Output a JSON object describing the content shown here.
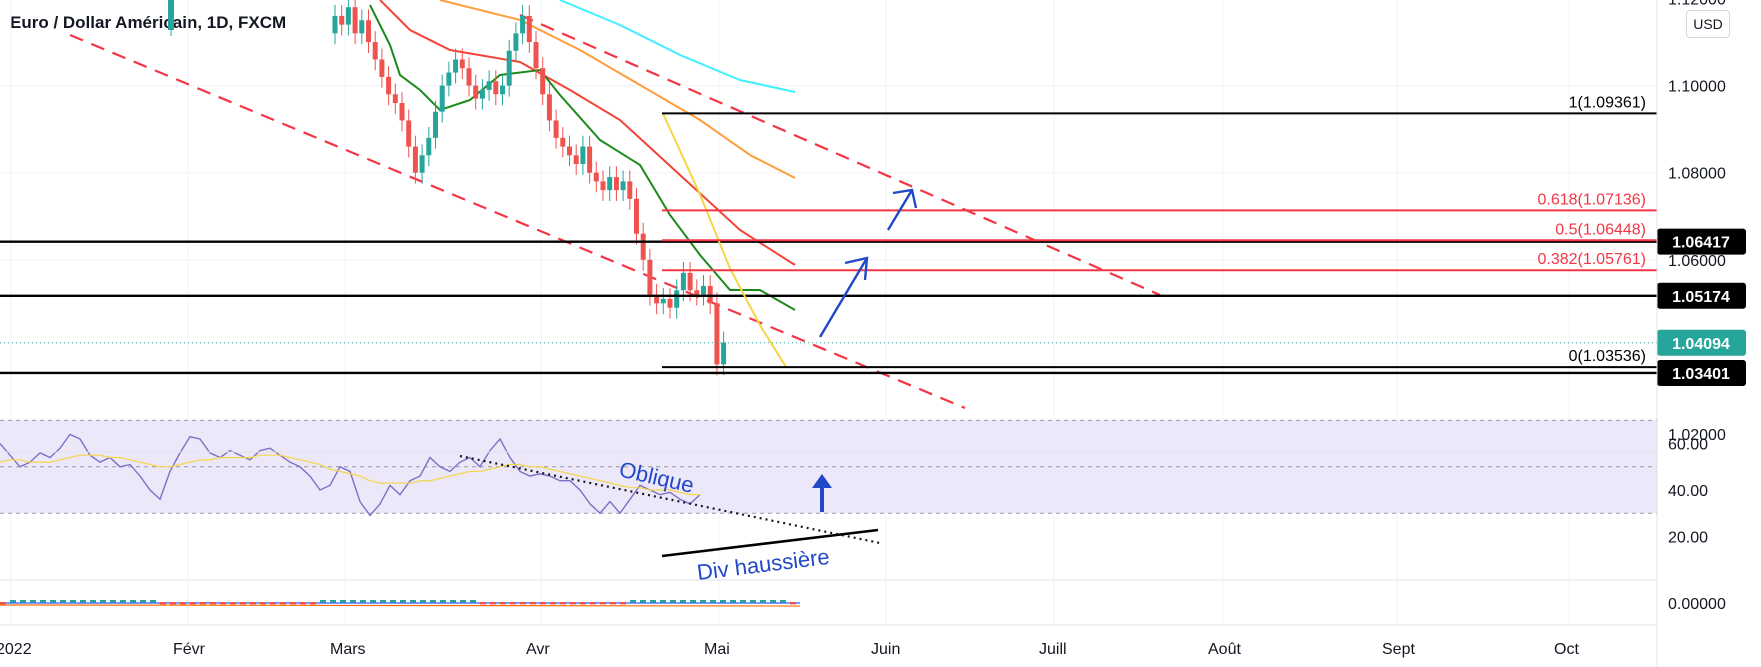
{
  "header": {
    "title": "Euro / Dollar Américain, 1D, FXCM",
    "currency": "USD"
  },
  "colors": {
    "up": "#26a69a",
    "down": "#ef5350",
    "black": "#000000",
    "red_line": "#f23645",
    "ema_short": "#1b8a1b",
    "ema_mid": "#f44336",
    "ema_long": "#ff9d3b",
    "ema_longest": "#3ff0ff",
    "fib_leg": "#f5d547",
    "channel": "#f23645",
    "annotation": "#2148c9",
    "rsi": "#7e6fc6",
    "rsi_ma": "#f5d547",
    "rsi_band": "#ede8f9",
    "price_badge": "#26a69a"
  },
  "chart_data": {
    "type": "candlestick",
    "symbol": "EURUSD",
    "timeframe": "1D",
    "y_ticks": [
      "1.12000",
      "1.10000",
      "1.08000",
      "1.06000",
      "1.02000"
    ],
    "x_ticks": [
      "2022",
      "Févr",
      "Mars",
      "Avr",
      "Mai",
      "Juin",
      "Juill",
      "Août",
      "Sept",
      "Oct"
    ],
    "horizontal_levels": [
      {
        "label": "1.06417",
        "value": 1.06417,
        "style": "black-badge"
      },
      {
        "label": "1.05174",
        "value": 1.05174,
        "style": "black-badge"
      },
      {
        "label": "1.03401",
        "value": 1.03401,
        "style": "black-badge"
      }
    ],
    "last_price": {
      "label": "1.04094",
      "value": 1.04094
    },
    "fibonacci": {
      "high": 1.09361,
      "low": 1.03536,
      "levels": [
        {
          "label": "1(1.09361)",
          "value": 1.09361,
          "color": "black"
        },
        {
          "label": "0.618(1.07136)",
          "value": 1.07136,
          "color": "red"
        },
        {
          "label": "0.5(1.06448)",
          "value": 1.06448,
          "color": "red"
        },
        {
          "label": "0.382(1.05761)",
          "value": 1.05761,
          "color": "red"
        },
        {
          "label": "0(1.03536)",
          "value": 1.03536,
          "color": "black"
        }
      ]
    },
    "rsi": {
      "y_ticks": [
        "60.00",
        "40.00",
        "20.00"
      ],
      "band": [
        30,
        70
      ],
      "annotations": [
        "Oblique",
        "Div haussière"
      ]
    },
    "macd": {
      "y_ticks": [
        "0.00000"
      ]
    }
  }
}
